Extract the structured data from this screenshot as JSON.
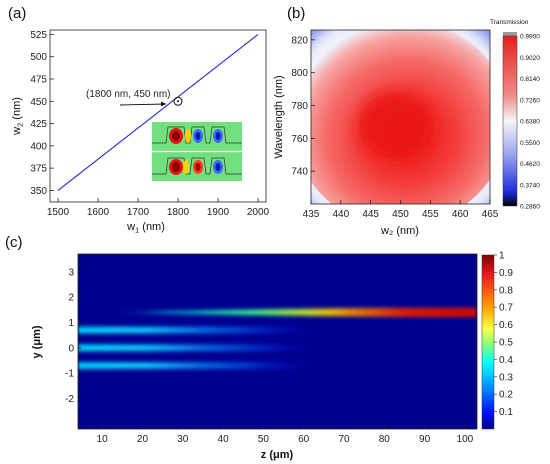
{
  "panels": {
    "a": "(a)",
    "b": "(b)",
    "c": "(c)"
  },
  "chart_data": [
    {
      "id": "a",
      "type": "line",
      "xlabel_main": "w",
      "xlabel_sub": "1",
      "xlabel_unit": " (nm)",
      "ylabel_main": "w",
      "ylabel_sub": "2",
      "ylabel_unit": " (nm)",
      "xlim": [
        1480,
        2020
      ],
      "ylim": [
        337,
        530
      ],
      "xticks": [
        1500,
        1600,
        1700,
        1800,
        1900,
        2000
      ],
      "yticks": [
        350,
        375,
        400,
        425,
        450,
        475,
        500,
        525
      ],
      "series": [
        {
          "x": [
            1500,
            2000
          ],
          "y": [
            350,
            525
          ],
          "color": "#1f2bd1"
        }
      ],
      "annotation": {
        "text": "(1800 nm, 450 nm)",
        "x": 1800,
        "y": 450
      }
    },
    {
      "id": "b",
      "type": "heatmap",
      "xlabel": "w₂ (nm)",
      "ylabel": "Wavelength (nm)",
      "xlim": [
        435,
        465
      ],
      "ylim": [
        720,
        826
      ],
      "xticks": [
        435,
        440,
        445,
        450,
        455,
        460,
        465
      ],
      "yticks": [
        740,
        760,
        780,
        800,
        820
      ],
      "peak": {
        "w2": 448,
        "wavelength": 770,
        "transmission": 0.99
      },
      "colorbar": {
        "title": "Transmission",
        "ticks": [
          "0.9900",
          "0.9020",
          "0.8140",
          "0.7260",
          "0.6380",
          "0.5500",
          "0.4620",
          "0.3740",
          "0.2860"
        ]
      }
    },
    {
      "id": "c",
      "type": "heatmap",
      "xlabel": "z (μm)",
      "ylabel": "y (μm)",
      "xlim": [
        4,
        103
      ],
      "ylim": [
        -3.2,
        3.7
      ],
      "xticks": [
        10,
        20,
        30,
        40,
        50,
        60,
        70,
        80,
        90,
        100
      ],
      "yticks": [
        3,
        2,
        1,
        0,
        -1,
        -2
      ],
      "waveguides_y": [
        1.4,
        0.7,
        0.0,
        -0.7
      ],
      "colorbar": {
        "ticks": [
          "1",
          "0.9",
          "0.8",
          "0.7",
          "0.6",
          "0.5",
          "0.4",
          "0.3",
          "0.2",
          "0.1"
        ]
      }
    }
  ]
}
